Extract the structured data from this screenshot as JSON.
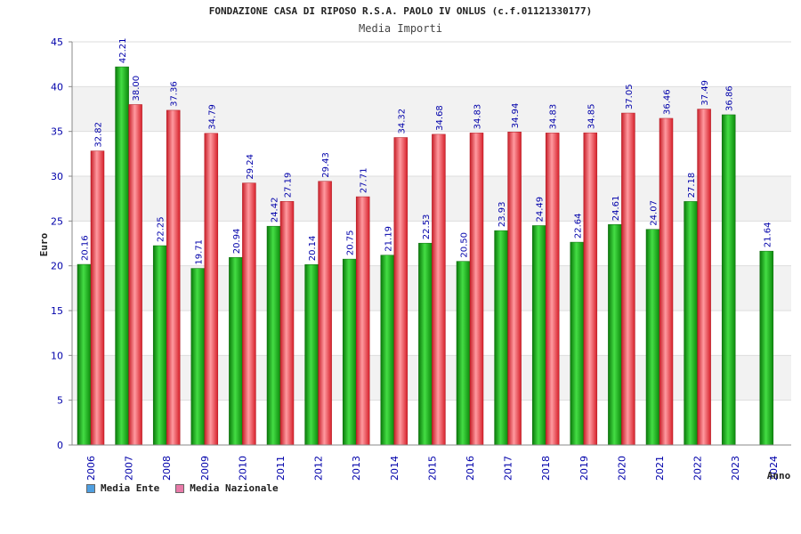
{
  "chart_data": {
    "type": "bar",
    "title": "FONDAZIONE CASA DI RIPOSO R.S.A. PAOLO IV ONLUS (c.f.01121330177)",
    "subtitle": "Media Importi",
    "xlabel": "Anno",
    "ylabel": "Euro",
    "ylim": [
      0,
      45
    ],
    "yticks": [
      0,
      5,
      10,
      15,
      20,
      25,
      30,
      35,
      40,
      45
    ],
    "grid": true,
    "legend_position": "bottom-left",
    "categories": [
      "2006",
      "2007",
      "2008",
      "2009",
      "2010",
      "2011",
      "2012",
      "2013",
      "2014",
      "2015",
      "2016",
      "2017",
      "2018",
      "2019",
      "2020",
      "2021",
      "2022",
      "2023",
      "2024"
    ],
    "series": [
      {
        "name": "Media Ente",
        "color": "#22aa22",
        "legend_color": "#4f9fe0",
        "values": [
          20.16,
          42.21,
          22.25,
          19.71,
          20.94,
          24.42,
          20.14,
          20.75,
          21.19,
          22.53,
          20.5,
          23.93,
          24.49,
          22.64,
          24.61,
          24.07,
          27.18,
          36.86,
          21.64
        ],
        "labels": [
          "20.16",
          "42.21",
          "22.25",
          "19.71",
          "20.94",
          "24.42",
          "20.14",
          "20.75",
          "21.19",
          "22.53",
          "20.50",
          "23.93",
          "24.49",
          "22.64",
          "24.61",
          "24.07",
          "27.18",
          "36.86",
          "21.64"
        ]
      },
      {
        "name": "Media Nazionale",
        "color": "#e8363f",
        "legend_color": "#e87aa8",
        "values": [
          32.82,
          38.0,
          37.36,
          34.79,
          29.24,
          27.19,
          29.43,
          27.71,
          34.32,
          34.68,
          34.83,
          34.94,
          34.83,
          34.85,
          37.05,
          36.46,
          37.49,
          null,
          null
        ],
        "labels": [
          "32.82",
          "38.00",
          "37.36",
          "34.79",
          "29.24",
          "27.19",
          "29.43",
          "27.71",
          "34.32",
          "34.68",
          "34.83",
          "34.94",
          "34.83",
          "34.85",
          "37.05",
          "36.46",
          "37.49",
          "",
          ""
        ]
      }
    ]
  }
}
